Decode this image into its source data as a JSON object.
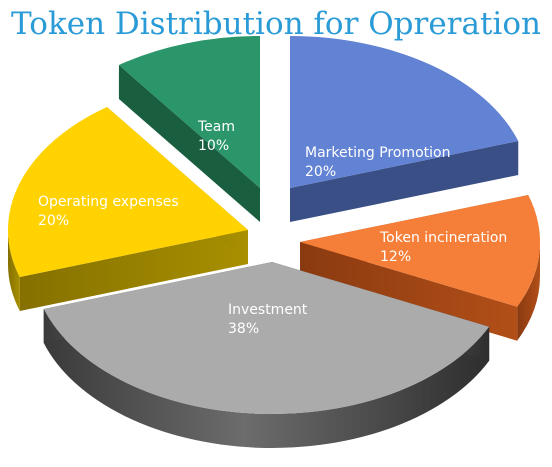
{
  "chart_data": {
    "type": "pie",
    "title": "Token Distribution for Opreration",
    "slices": [
      {
        "label": "Marketing Promotion",
        "percent_label": "20%",
        "value": 20,
        "color": "#6282d4"
      },
      {
        "label": "Token incineration",
        "percent_label": "12%",
        "value": 12,
        "color": "#f57e38"
      },
      {
        "label": "Investment",
        "percent_label": "38%",
        "value": 38,
        "color": "#ababab"
      },
      {
        "label": "Operating expenses",
        "percent_label": "20%",
        "value": 20,
        "color": "#ffd200"
      },
      {
        "label": "Team",
        "percent_label": "10%",
        "value": 10,
        "color": "#2a9669"
      }
    ],
    "style": "3d-exploded",
    "title_color": "#2a9bd6"
  }
}
